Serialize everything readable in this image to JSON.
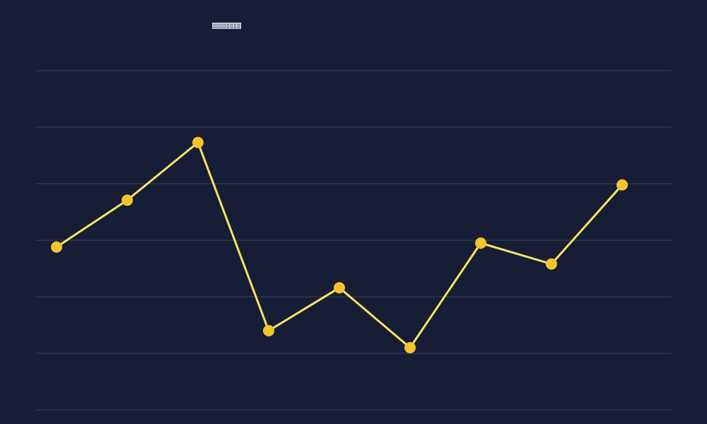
{
  "chart_data": {
    "type": "line",
    "title": "▯▯▯▯▯▯▯▯",
    "xlabel": "",
    "ylabel": "",
    "x": [
      1,
      2,
      3,
      4,
      5,
      6,
      7,
      8,
      9
    ],
    "ylim": [
      0,
      6
    ],
    "gridlines_y": [
      0,
      1,
      2,
      3,
      4,
      5,
      6
    ],
    "grid": true,
    "series": [
      {
        "values": [
          2.88,
          3.71,
          4.73,
          1.4,
          2.16,
          1.1,
          2.95,
          2.58,
          3.98
        ]
      }
    ],
    "colors": {
      "background": "#161d34",
      "line": "#f7e463",
      "marker": "#f5c42c",
      "grid": "#3a4158"
    }
  }
}
